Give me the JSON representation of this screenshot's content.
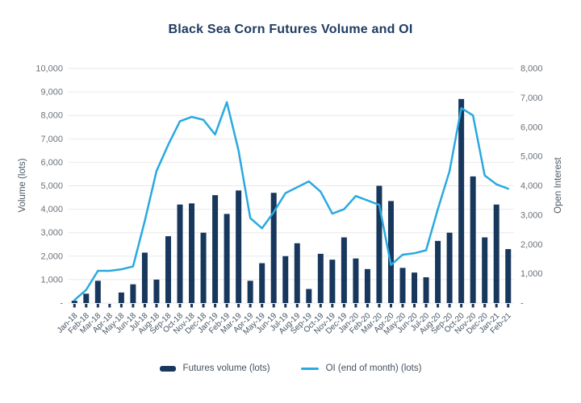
{
  "title": "Black Sea Corn Futures Volume and OI",
  "chart_data": {
    "type": "bar",
    "subtype": "combo-bar-line",
    "grid": true,
    "legend_position": "bottom",
    "categories": [
      "Jan-18",
      "Feb-18",
      "Mar-18",
      "Apr-18",
      "May-18",
      "Jun-18",
      "Jul-18",
      "Aug-18",
      "Sep-18",
      "Oct-18",
      "Nov-18",
      "Dec-18",
      "Jan-19",
      "Feb-19",
      "Mar-19",
      "Apr-19",
      "May-19",
      "Jun-19",
      "Jul-19",
      "Aug-19",
      "Sep-19",
      "Oct-19",
      "Nov-19",
      "Dec-19",
      "Jan-20",
      "Feb-20",
      "Mar-20",
      "Apr-20",
      "May-20",
      "Jun-20",
      "Jul-20",
      "Aug-20",
      "Sep-20",
      "Oct-20",
      "Nov-20",
      "Dec-20",
      "Jan-21",
      "Feb-21"
    ],
    "series": [
      {
        "name": "Futures volume (lots)",
        "type": "bar",
        "axis": "left",
        "color": "#17375c",
        "values": [
          100,
          400,
          950,
          0,
          450,
          800,
          2150,
          1000,
          2850,
          4200,
          4250,
          3000,
          4600,
          3800,
          4800,
          950,
          1700,
          4700,
          2000,
          2550,
          600,
          2100,
          1850,
          2800,
          1900,
          1450,
          5000,
          4350,
          1500,
          1300,
          1100,
          2650,
          3000,
          8700,
          5400,
          2800,
          4200,
          2300
        ]
      },
      {
        "name": "OI (end of month) (lots)",
        "type": "line",
        "axis": "right",
        "color": "#29a9e0",
        "values": [
          100,
          450,
          1100,
          1100,
          1150,
          1250,
          2800,
          4500,
          5400,
          6200,
          6350,
          6250,
          5750,
          6850,
          5200,
          2900,
          2550,
          3100,
          3750,
          3950,
          4150,
          3800,
          3050,
          3200,
          3650,
          3500,
          3350,
          1300,
          1650,
          1700,
          1800,
          3200,
          4500,
          6650,
          6400,
          4350,
          4050,
          3900
        ]
      }
    ],
    "left_axis": {
      "title": "Volume (lots)",
      "min": 0,
      "max": 10000,
      "step": 1000,
      "tick_labels": [
        "-",
        "1,000",
        "2,000",
        "3,000",
        "4,000",
        "5,000",
        "6,000",
        "7,000",
        "8,000",
        "9,000",
        "10,000"
      ]
    },
    "right_axis": {
      "title": "Open Interest",
      "min": 0,
      "max": 8000,
      "step": 1000,
      "tick_labels": [
        "-",
        "1,000",
        "2,000",
        "3,000",
        "4,000",
        "5,000",
        "6,000",
        "7,000",
        "8,000"
      ]
    },
    "colors": {
      "title": "#1f3c61",
      "gridline": "#e8e9ea",
      "y_tick_text": "#6b7178",
      "x_tick_text": "#445362"
    }
  }
}
